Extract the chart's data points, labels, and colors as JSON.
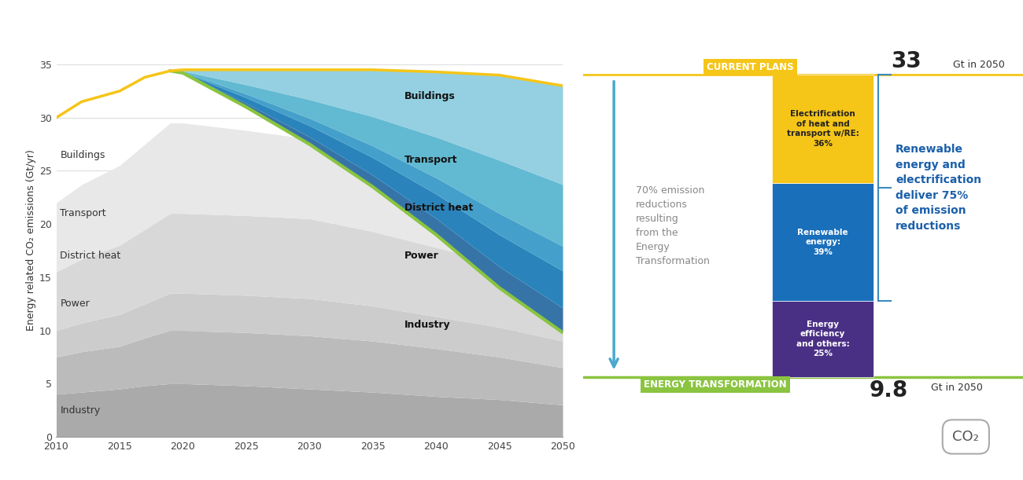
{
  "years_all": [
    2010,
    2012,
    2015,
    2017,
    2019,
    2020,
    2025,
    2030,
    2035,
    2040,
    2045,
    2050
  ],
  "current_plans_line": [
    30.0,
    31.5,
    32.5,
    33.8,
    34.4,
    34.5,
    34.5,
    34.5,
    34.5,
    34.3,
    34.0,
    33.0
  ],
  "energy_transform_total": [
    30.0,
    31.5,
    32.5,
    33.8,
    34.4,
    34.2,
    31.0,
    27.5,
    23.5,
    19.0,
    14.0,
    9.8
  ],
  "gray_sectors": {
    "Industry": [
      4.0,
      4.2,
      4.5,
      4.8,
      5.0,
      5.0,
      4.8,
      4.5,
      4.2,
      3.8,
      3.5,
      3.0
    ],
    "Power": [
      3.5,
      3.8,
      4.0,
      4.5,
      5.0,
      5.0,
      5.0,
      5.0,
      4.8,
      4.5,
      4.0,
      3.5
    ],
    "District_heat": [
      2.5,
      2.7,
      3.0,
      3.2,
      3.5,
      3.5,
      3.5,
      3.5,
      3.3,
      3.0,
      2.8,
      2.5
    ],
    "Transport": [
      5.5,
      6.0,
      6.5,
      7.0,
      7.5,
      7.5,
      7.5,
      7.5,
      7.0,
      6.5,
      6.0,
      5.5
    ],
    "Buildings": [
      6.5,
      7.0,
      7.5,
      8.0,
      8.5,
      8.5,
      8.0,
      7.5,
      7.0,
      6.5,
      6.0,
      5.5
    ]
  },
  "blue_fractions": {
    "Industry": 0.1,
    "Power": 0.15,
    "District_heat": 0.1,
    "Transport": 0.25,
    "Buildings": 0.4
  },
  "blue_colors": {
    "Industry": "#2b6ca3",
    "Power": "#1e7db8",
    "District_heat": "#3a9bc8",
    "Transport": "#5ab5d0",
    "Buildings": "#8ecee0"
  },
  "gray_colors": {
    "Industry": "#aaaaaa",
    "Power": "#bbbbbb",
    "District_heat": "#cccccc",
    "Transport": "#d8d8d8",
    "Buildings": "#e8e8e8"
  },
  "sector_order": [
    "Industry",
    "Power",
    "District_heat",
    "Transport",
    "Buildings"
  ],
  "current_plans_color": "#f5c518",
  "green_color": "#8ac440",
  "xlim": [
    2010,
    2050
  ],
  "ylim": [
    0,
    37
  ],
  "yticks": [
    0,
    5,
    10,
    15,
    20,
    25,
    30,
    35
  ],
  "xticks": [
    2010,
    2015,
    2020,
    2025,
    2030,
    2035,
    2040,
    2045,
    2050
  ],
  "ylabel": "Energy related CO₂ emissions (Gt/yr)",
  "bar_yellow_color": "#f5c518",
  "bar_blue_color": "#1a6fba",
  "bar_purple_color": "#4a3085",
  "bar_yellow_pct": 0.36,
  "bar_blue_pct": 0.39,
  "bar_purple_pct": 0.25,
  "bar_yellow_label": "Electrification\nof heat and\ntransport w/RE:\n36%",
  "bar_blue_label": "Renewable\nenergy:\n39%",
  "bar_purple_label": "Energy\nefficiency\nand others:\n25%",
  "right_text": "Renewable\nenergy and\nelectrification\ndeliver 75%\nof emission\nreductions",
  "text_70pct": "70% emission\nreductions\nresulting\nfrom the\nEnergy\nTransformation",
  "current_plans_label": "CURRENT PLANS",
  "energy_transform_label": "ENERGY TRANSFORMATION",
  "arrow_color": "#4aa8cc",
  "bracket_color": "#3a8bbf",
  "right_text_color": "#1a5faa"
}
